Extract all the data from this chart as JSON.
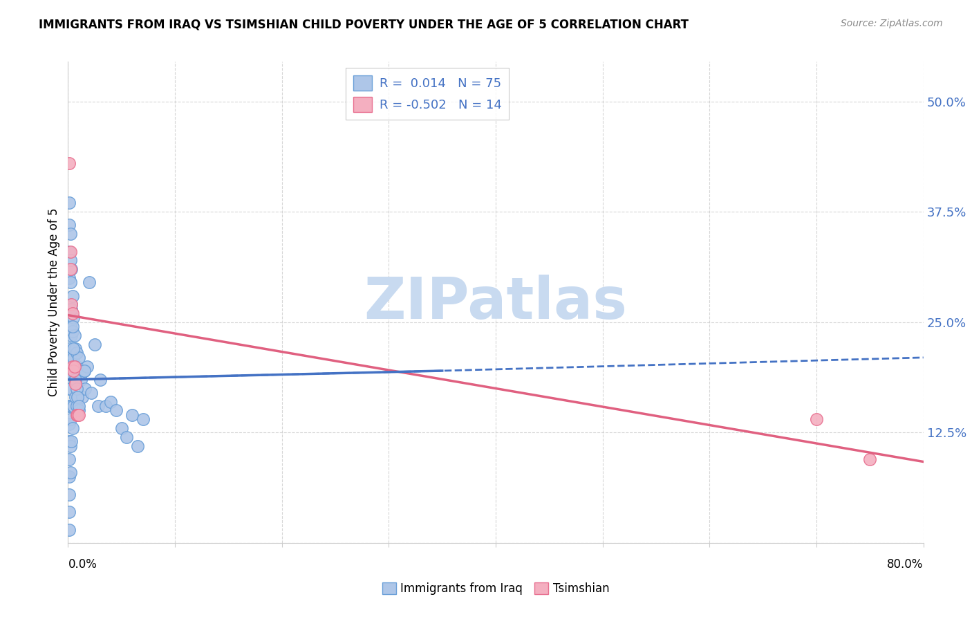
{
  "title": "IMMIGRANTS FROM IRAQ VS TSIMSHIAN CHILD POVERTY UNDER THE AGE OF 5 CORRELATION CHART",
  "source": "Source: ZipAtlas.com",
  "ylabel": "Child Poverty Under the Age of 5",
  "yticks": [
    0.0,
    0.125,
    0.25,
    0.375,
    0.5
  ],
  "ytick_labels": [
    "",
    "12.5%",
    "25.0%",
    "37.5%",
    "50.0%"
  ],
  "xlim": [
    0.0,
    0.8
  ],
  "ylim": [
    0.0,
    0.545
  ],
  "legend_r_blue": "0.014",
  "legend_n_blue": "75",
  "legend_r_pink": "-0.502",
  "legend_n_pink": "14",
  "blue_fill": "#aec6e8",
  "blue_edge": "#6a9fd8",
  "pink_fill": "#f4afc0",
  "pink_edge": "#e87090",
  "blue_line_color": "#4472c4",
  "pink_line_color": "#e06080",
  "grid_color": "#cccccc",
  "blue_scatter_x": [
    0.001,
    0.001,
    0.001,
    0.001,
    0.001,
    0.001,
    0.001,
    0.001,
    0.001,
    0.001,
    0.001,
    0.001,
    0.001,
    0.001,
    0.001,
    0.001,
    0.001,
    0.002,
    0.002,
    0.002,
    0.002,
    0.002,
    0.002,
    0.002,
    0.002,
    0.003,
    0.003,
    0.003,
    0.003,
    0.003,
    0.003,
    0.004,
    0.004,
    0.004,
    0.004,
    0.005,
    0.005,
    0.005,
    0.006,
    0.006,
    0.007,
    0.007,
    0.008,
    0.008,
    0.009,
    0.01,
    0.01,
    0.012,
    0.013,
    0.015,
    0.016,
    0.018,
    0.02,
    0.022,
    0.025,
    0.028,
    0.03,
    0.035,
    0.04,
    0.045,
    0.05,
    0.055,
    0.06,
    0.065,
    0.07,
    0.002,
    0.003,
    0.004,
    0.005,
    0.006,
    0.007,
    0.008,
    0.009,
    0.01,
    0.015
  ],
  "blue_scatter_y": [
    0.385,
    0.36,
    0.33,
    0.3,
    0.265,
    0.245,
    0.22,
    0.195,
    0.175,
    0.155,
    0.135,
    0.115,
    0.095,
    0.075,
    0.055,
    0.035,
    0.015,
    0.35,
    0.295,
    0.245,
    0.21,
    0.175,
    0.14,
    0.11,
    0.08,
    0.31,
    0.27,
    0.235,
    0.195,
    0.155,
    0.115,
    0.28,
    0.24,
    0.19,
    0.13,
    0.255,
    0.21,
    0.155,
    0.235,
    0.185,
    0.22,
    0.165,
    0.215,
    0.155,
    0.2,
    0.21,
    0.15,
    0.185,
    0.165,
    0.195,
    0.175,
    0.2,
    0.295,
    0.17,
    0.225,
    0.155,
    0.185,
    0.155,
    0.16,
    0.15,
    0.13,
    0.12,
    0.145,
    0.11,
    0.14,
    0.32,
    0.265,
    0.245,
    0.22,
    0.2,
    0.185,
    0.175,
    0.165,
    0.155,
    0.195
  ],
  "pink_scatter_x": [
    0.001,
    0.002,
    0.002,
    0.003,
    0.004,
    0.004,
    0.005,
    0.006,
    0.007,
    0.008,
    0.009,
    0.01,
    0.7,
    0.75
  ],
  "pink_scatter_y": [
    0.43,
    0.33,
    0.31,
    0.27,
    0.26,
    0.2,
    0.195,
    0.2,
    0.18,
    0.145,
    0.145,
    0.145,
    0.14,
    0.095
  ],
  "blue_trend_x": [
    0.0,
    0.35,
    0.8
  ],
  "blue_trend_y": [
    0.185,
    0.195,
    0.21
  ],
  "pink_trend_x": [
    0.0,
    0.8
  ],
  "pink_trend_y": [
    0.258,
    0.092
  ],
  "watermark_text": "ZIPatlas",
  "watermark_color": "#c8daf0",
  "bottom_legend_labels": [
    "Immigrants from Iraq",
    "Tsimshian"
  ]
}
